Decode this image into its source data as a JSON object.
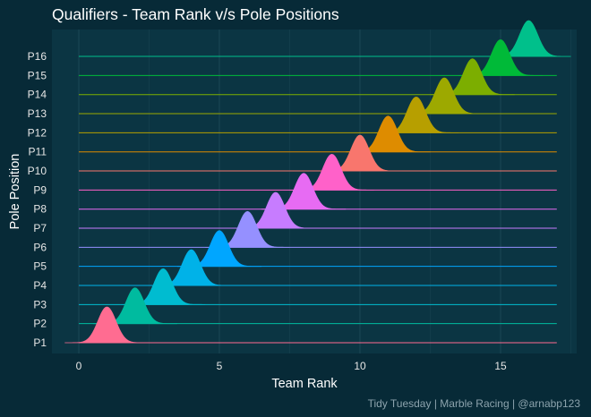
{
  "title": "Qualifiers - Team Rank v/s Pole Positions",
  "caption": "Tidy Tuesday | Marble Racing | @arnabp123",
  "colors": {
    "background": "#072a37",
    "panel": "#0b3543",
    "grid": "#1b4654"
  },
  "chart_data": {
    "type": "ridgeline",
    "title": "Qualifiers - Team Rank v/s Pole Positions",
    "xlabel": "Team Rank",
    "ylabel": "Pole Position",
    "xlim": [
      -0.5,
      17.5
    ],
    "x_ticks": [
      0,
      5,
      10,
      15
    ],
    "x_tick_labels": [
      "0",
      "5",
      "10",
      "15"
    ],
    "y_categories": [
      "P1",
      "P2",
      "P3",
      "P4",
      "P5",
      "P6",
      "P7",
      "P8",
      "P9",
      "P10",
      "P11",
      "P12",
      "P13",
      "P14",
      "P15",
      "P16"
    ],
    "series": [
      {
        "name": "P1",
        "peak_rank": 1,
        "color": "#ff6c91"
      },
      {
        "name": "P2",
        "peak_rank": 2,
        "color": "#00bb9f"
      },
      {
        "name": "P3",
        "peak_rank": 3,
        "color": "#00bcd0"
      },
      {
        "name": "P4",
        "peak_rank": 4,
        "color": "#00b2e8"
      },
      {
        "name": "P5",
        "peak_rank": 5,
        "color": "#00a6ff"
      },
      {
        "name": "P6",
        "peak_rank": 6,
        "color": "#9590ff"
      },
      {
        "name": "P7",
        "peak_rank": 7,
        "color": "#c77cff"
      },
      {
        "name": "P8",
        "peak_rank": 8,
        "color": "#e76bf3"
      },
      {
        "name": "P9",
        "peak_rank": 9,
        "color": "#ff61c9"
      },
      {
        "name": "P10",
        "peak_rank": 10,
        "color": "#f8766d"
      },
      {
        "name": "P11",
        "peak_rank": 11,
        "color": "#de8c00"
      },
      {
        "name": "P12",
        "peak_rank": 12,
        "color": "#b79f00"
      },
      {
        "name": "P13",
        "peak_rank": 13,
        "color": "#9da900"
      },
      {
        "name": "P14",
        "peak_rank": 14,
        "color": "#7cae00"
      },
      {
        "name": "P15",
        "peak_rank": 15,
        "color": "#00ba38"
      },
      {
        "name": "P16",
        "peak_rank": 16,
        "color": "#00c08b"
      }
    ],
    "baseline_range": [
      0,
      17
    ],
    "bandwidth": 0.32,
    "grid": true,
    "legend": "none"
  }
}
